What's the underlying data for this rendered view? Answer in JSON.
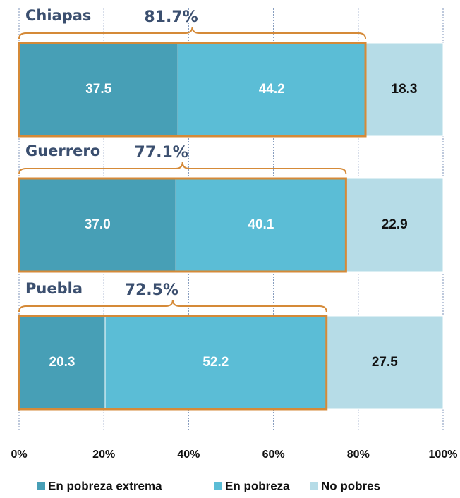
{
  "chart_data": {
    "type": "stacked_barh",
    "categories": [
      "Chiapas",
      "Guerrero",
      "Puebla"
    ],
    "series": [
      {
        "name": "En pobreza extrema",
        "color": "#479fb6",
        "values": [
          37.5,
          37.0,
          20.3
        ],
        "value_labels": [
          "37.5",
          "37.0",
          "20.3"
        ]
      },
      {
        "name": "En pobreza",
        "color": "#5bbdd6",
        "values": [
          44.2,
          40.1,
          52.2
        ],
        "value_labels": [
          "44.2",
          "40.1",
          "52.2"
        ]
      },
      {
        "name": "No pobres",
        "color": "#b6dce7",
        "values": [
          18.3,
          22.9,
          27.5
        ],
        "value_labels": [
          "18.3",
          "22.9",
          "27.5"
        ]
      }
    ],
    "totals": [
      {
        "value": 81.7,
        "label": "81.7%"
      },
      {
        "value": 77.1,
        "label": "77.1%"
      },
      {
        "value": 72.5,
        "label": "72.5%"
      }
    ],
    "xlim": [
      0,
      100
    ],
    "xticks": [
      {
        "value": 0,
        "label": "0%"
      },
      {
        "value": 20,
        "label": "20%"
      },
      {
        "value": 40,
        "label": "40%"
      },
      {
        "value": 60,
        "label": "60%"
      },
      {
        "value": 80,
        "label": "80%"
      },
      {
        "value": 100,
        "label": "100%"
      }
    ],
    "grid": true,
    "legend": "bottom"
  }
}
